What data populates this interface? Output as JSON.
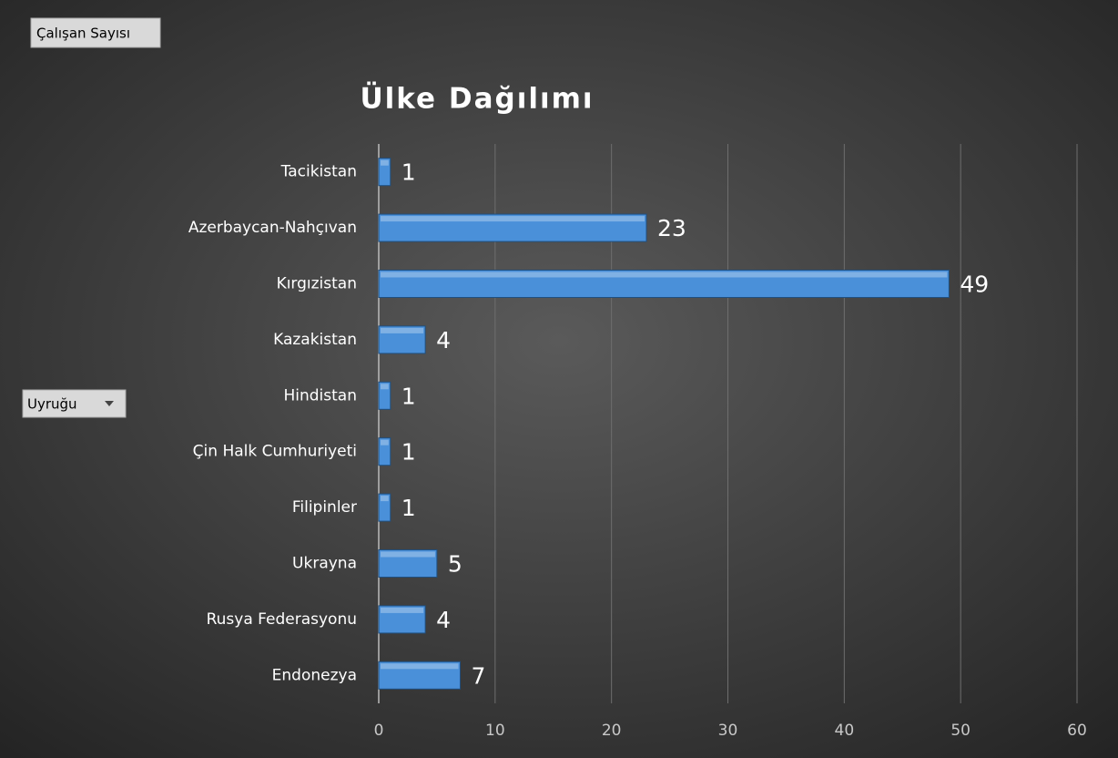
{
  "chart_data": {
    "type": "bar",
    "orientation": "horizontal",
    "title": "Ülke Dağılımı",
    "value_field": "Çalışan Sayısı",
    "axis_field": "Uyruğu",
    "categories": [
      "Tacikistan",
      "Azerbaycan-Nahçıvan",
      "Kırgızistan",
      "Kazakistan",
      "Hindistan",
      "Çin Halk Cumhuriyeti",
      "Filipinler",
      "Ukrayna",
      "Rusya Federasyonu",
      "Endonezya"
    ],
    "values": [
      1,
      23,
      49,
      4,
      1,
      1,
      1,
      5,
      4,
      7
    ],
    "color": "#4a90d9",
    "xlim": [
      0,
      60
    ],
    "xticks": [
      0,
      10,
      20,
      30,
      40,
      50,
      60
    ],
    "grid": true
  }
}
